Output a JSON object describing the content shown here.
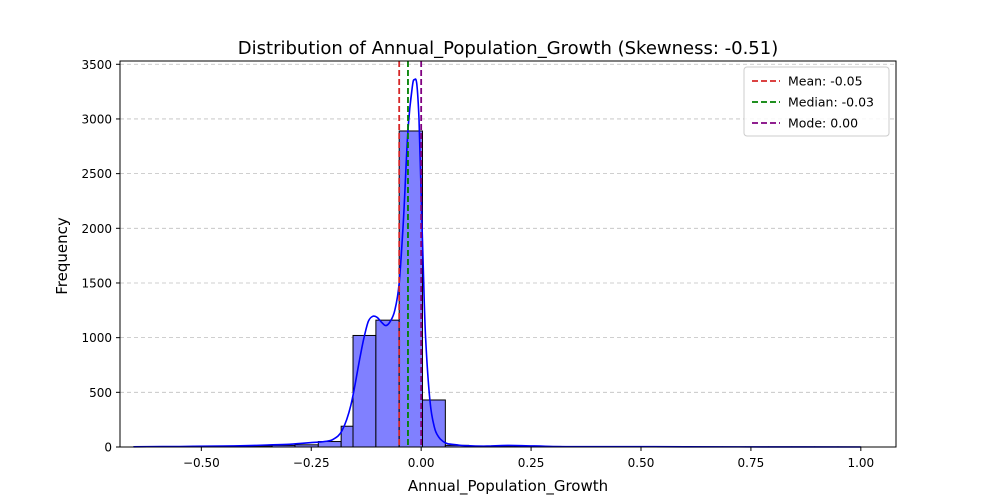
{
  "chart_data": {
    "type": "bar",
    "title": "Distribution of Annual_Population_Growth (Skewness: -0.51)",
    "xlabel": "Annual_Population_Growth",
    "ylabel": "Frequency",
    "xlim": [
      -0.685,
      1.08
    ],
    "ylim": [
      0,
      3530
    ],
    "xticks": [
      -0.5,
      -0.25,
      0.0,
      0.25,
      0.5,
      0.75,
      1.0
    ],
    "xtick_labels": [
      "−0.50",
      "−0.25",
      "0.00",
      "0.25",
      "0.50",
      "0.75",
      "1.00"
    ],
    "yticks": [
      0,
      500,
      1000,
      1500,
      2000,
      2500,
      3000,
      3500
    ],
    "ytick_labels": [
      "0",
      "500",
      "1000",
      "1500",
      "2000",
      "2500",
      "3000",
      "3500"
    ],
    "grid": "horizontal dashed",
    "bar_color": "#8080ff",
    "bar_edge_color": "#000000",
    "bars": [
      {
        "x0": -0.654,
        "x1": -0.602,
        "value": 2
      },
      {
        "x0": -0.602,
        "x1": -0.549,
        "value": 1
      },
      {
        "x0": -0.549,
        "x1": -0.497,
        "value": 2
      },
      {
        "x0": -0.497,
        "x1": -0.444,
        "value": 3
      },
      {
        "x0": -0.444,
        "x1": -0.392,
        "value": 5
      },
      {
        "x0": -0.392,
        "x1": -0.339,
        "value": 10
      },
      {
        "x0": -0.339,
        "x1": -0.287,
        "value": 15
      },
      {
        "x0": -0.287,
        "x1": -0.234,
        "value": 20
      },
      {
        "x0": -0.234,
        "x1": -0.182,
        "value": 50
      },
      {
        "x0": -0.182,
        "x1": -0.155,
        "value": 190
      },
      {
        "x0": -0.155,
        "x1": -0.103,
        "value": 1020
      },
      {
        "x0": -0.103,
        "x1": -0.05,
        "value": 1160
      },
      {
        "x0": -0.05,
        "x1": 0.003,
        "value": 2890
      },
      {
        "x0": 0.003,
        "x1": 0.055,
        "value": 430
      },
      {
        "x0": 0.055,
        "x1": 0.108,
        "value": 15
      },
      {
        "x0": 0.108,
        "x1": 0.16,
        "value": 8
      },
      {
        "x0": 0.16,
        "x1": 0.213,
        "value": 10
      },
      {
        "x0": 0.213,
        "x1": 0.265,
        "value": 5
      },
      {
        "x0": 0.265,
        "x1": 0.318,
        "value": 5
      },
      {
        "x0": 0.318,
        "x1": 0.37,
        "value": 3
      },
      {
        "x0": 0.37,
        "x1": 0.423,
        "value": 2
      },
      {
        "x0": 0.423,
        "x1": 0.475,
        "value": 1
      },
      {
        "x0": 0.475,
        "x1": 0.528,
        "value": 1
      },
      {
        "x0": 0.528,
        "x1": 0.58,
        "value": 1
      },
      {
        "x0": 0.58,
        "x1": 0.633,
        "value": 1
      },
      {
        "x0": 0.633,
        "x1": 0.685,
        "value": 1
      },
      {
        "x0": 0.685,
        "x1": 0.738,
        "value": 1
      },
      {
        "x0": 0.738,
        "x1": 0.79,
        "value": 1
      },
      {
        "x0": 0.79,
        "x1": 0.843,
        "value": 1
      },
      {
        "x0": 0.843,
        "x1": 0.895,
        "value": 1
      },
      {
        "x0": 0.895,
        "x1": 0.948,
        "value": 1
      },
      {
        "x0": 0.948,
        "x1": 1.0,
        "value": 1
      }
    ],
    "kde": {
      "color": "#0000ff",
      "x": [
        -0.654,
        -0.55,
        -0.45,
        -0.4,
        -0.35,
        -0.3,
        -0.25,
        -0.22,
        -0.2,
        -0.18,
        -0.16,
        -0.14,
        -0.13,
        -0.12,
        -0.11,
        -0.1,
        -0.09,
        -0.08,
        -0.07,
        -0.06,
        -0.05,
        -0.04,
        -0.03,
        -0.02,
        -0.015,
        -0.01,
        -0.005,
        0.0,
        0.005,
        0.01,
        0.02,
        0.03,
        0.04,
        0.05,
        0.06,
        0.08,
        0.1,
        0.15,
        0.2,
        0.3,
        0.4,
        0.6,
        0.8,
        1.0
      ],
      "y": [
        2,
        5,
        8,
        12,
        18,
        25,
        40,
        50,
        70,
        150,
        380,
        800,
        1000,
        1150,
        1195,
        1185,
        1140,
        1110,
        1150,
        1250,
        1500,
        2100,
        2900,
        3300,
        3360,
        3320,
        3000,
        2300,
        1600,
        1000,
        420,
        180,
        90,
        50,
        30,
        20,
        12,
        8,
        15,
        5,
        3,
        2,
        1,
        0
      ]
    },
    "vlines": [
      {
        "label": "Mean: -0.05",
        "x": -0.05,
        "color": "#d62728"
      },
      {
        "label": "Median: -0.03",
        "x": -0.03,
        "color": "#008000"
      },
      {
        "label": "Mode: 0.00",
        "x": 0.0,
        "color": "#800080"
      }
    ],
    "legend_position": "upper right"
  }
}
